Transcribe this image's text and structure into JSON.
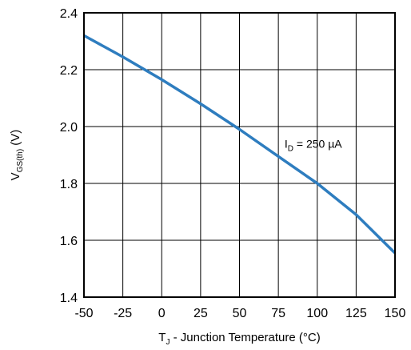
{
  "chart_data": {
    "type": "line",
    "xlabel": {
      "prefix": "T",
      "subscript": "J",
      "suffix": " - Junction Temperature (°C)"
    },
    "ylabel": {
      "prefix": "V",
      "subscript": "GS(th)",
      "suffix": " (V)"
    },
    "xlim": [
      -50,
      150
    ],
    "ylim": [
      1.4,
      2.4
    ],
    "x_ticks": [
      -50,
      -25,
      0,
      25,
      50,
      75,
      100,
      125,
      150
    ],
    "y_ticks": [
      1.4,
      1.6,
      1.8,
      2.0,
      2.2,
      2.4
    ],
    "x_tick_labels": [
      "-50",
      "-25",
      "0",
      "25",
      "50",
      "75",
      "100",
      "125",
      "150"
    ],
    "y_tick_labels": [
      "1.4",
      "1.6",
      "1.8",
      "2.0",
      "2.2",
      "2.4"
    ],
    "grid": true,
    "line_color": "#2E7DBF",
    "series": [
      {
        "x": [
          -50,
          -25,
          0,
          25,
          50,
          75,
          100,
          125,
          150
        ],
        "y": [
          2.32,
          2.245,
          2.165,
          2.08,
          1.99,
          1.895,
          1.8,
          1.69,
          1.555
        ]
      }
    ],
    "annotations": [
      {
        "prefix": "I",
        "subscript": "D",
        "suffix": " = 250 µA",
        "x": 79,
        "y": 1.94
      }
    ]
  }
}
